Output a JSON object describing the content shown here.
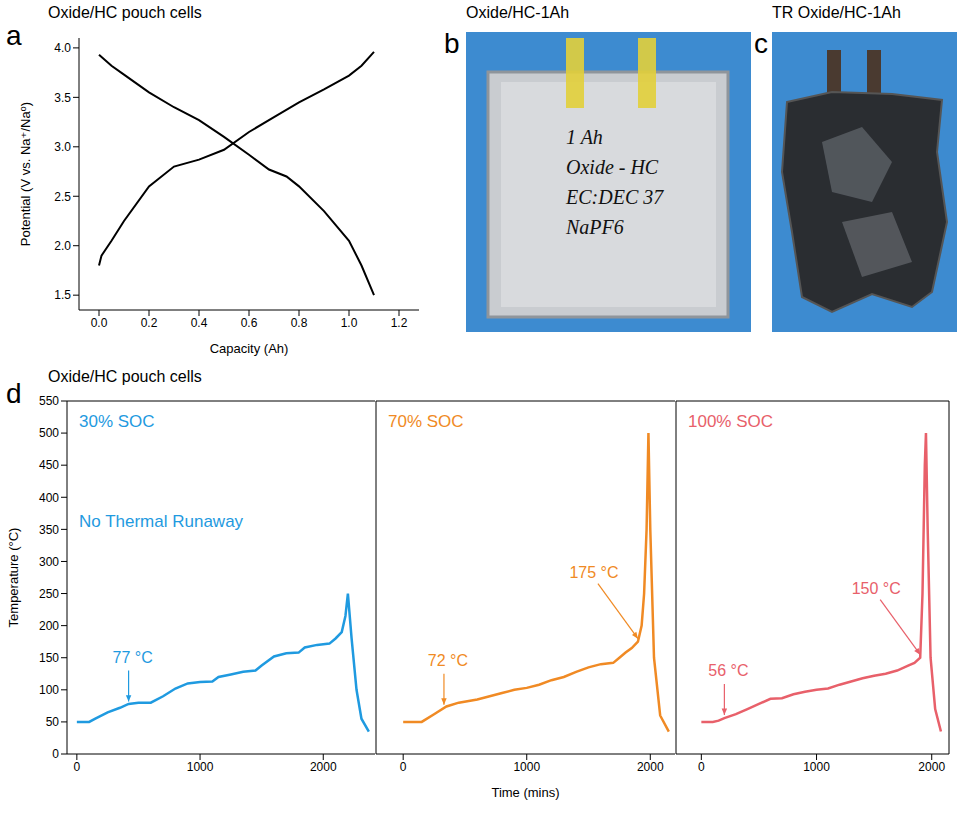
{
  "chart_data": [
    {
      "panel": "a",
      "type": "line",
      "title": "Oxide/HC pouch cells",
      "x_label": "Capacity (Ah)",
      "y_label": "Potential (V vs. Na⁺/Na⁰)",
      "xlim": [
        -0.08,
        1.28
      ],
      "ylim": [
        1.35,
        4.1
      ],
      "xticks": [
        {
          "value": 0,
          "label": "0.0"
        },
        0.2,
        0.4,
        0.6,
        0.8,
        {
          "value": 1,
          "label": "1.0"
        },
        1.2
      ],
      "yticks": [
        1.5,
        {
          "value": 2,
          "label": "2.0"
        },
        2.5,
        {
          "value": 3,
          "label": "3.0"
        },
        3.5,
        {
          "value": 4,
          "label": "4.0"
        }
      ],
      "series": [
        {
          "color": "#000000",
          "x": [
            0,
            0.01,
            0.05,
            0.1,
            0.2,
            0.3,
            0.4,
            0.5,
            0.6,
            0.7,
            0.8,
            0.9,
            1.0,
            1.05,
            1.1
          ],
          "values": [
            1.8,
            1.9,
            2.05,
            2.25,
            2.6,
            2.8,
            2.87,
            2.97,
            3.15,
            3.3,
            3.45,
            3.58,
            3.72,
            3.82,
            3.96
          ]
        },
        {
          "color": "#000000",
          "x": [
            0,
            0.05,
            0.1,
            0.2,
            0.3,
            0.4,
            0.5,
            0.6,
            0.68,
            0.75,
            0.8,
            0.9,
            1.0,
            1.05,
            1.1
          ],
          "values": [
            3.93,
            3.82,
            3.73,
            3.55,
            3.4,
            3.27,
            3.1,
            2.92,
            2.77,
            2.7,
            2.6,
            2.35,
            2.05,
            1.8,
            1.5
          ]
        }
      ]
    },
    {
      "panel": "b",
      "type": "photo",
      "title": "Oxide/HC-1Ah",
      "texts": [
        "1 Ah",
        "Oxide - HC",
        "EC:DEC 37",
        "NaPF6"
      ]
    },
    {
      "panel": "c",
      "type": "photo",
      "title": "TR Oxide/HC-1Ah"
    },
    {
      "panel": "d",
      "type": "line",
      "title": "Oxide/HC pouch cells",
      "x_label": "Time (mins)",
      "y_label": "Temperature (°C)",
      "ylim": [
        0,
        550
      ],
      "yticks": [
        0,
        50,
        100,
        150,
        200,
        250,
        300,
        350,
        400,
        450,
        500,
        550
      ],
      "xticks": [
        0,
        1000,
        2000
      ],
      "panels": [
        {
          "name": "30% SOC",
          "color": "#1f9ae0",
          "note": "No Thermal Runaway",
          "xlim": [
            -80,
            2420
          ],
          "x": [
            0,
            100,
            150,
            250,
            350,
            420,
            500,
            600,
            700,
            800,
            900,
            1000,
            1100,
            1150,
            1250,
            1350,
            1450,
            1500,
            1600,
            1700,
            1800,
            1850,
            1950,
            2050,
            2100,
            2150,
            2180,
            2200,
            2230,
            2270,
            2310,
            2370
          ],
          "values": [
            50,
            50,
            55,
            65,
            72,
            78,
            80,
            80,
            90,
            102,
            110,
            112,
            113,
            120,
            124,
            128,
            130,
            138,
            152,
            157,
            158,
            166,
            170,
            172,
            180,
            190,
            215,
            250,
            180,
            100,
            55,
            35
          ],
          "annotations": [
            {
              "text": "77 °C",
              "x": 420,
              "y": 77
            }
          ]
        },
        {
          "name": "70% SOC",
          "color": "#f08a24",
          "xlim": [
            -220,
            2200
          ],
          "x": [
            0,
            150,
            250,
            350,
            450,
            600,
            700,
            800,
            900,
            1000,
            1100,
            1200,
            1300,
            1400,
            1500,
            1600,
            1700,
            1750,
            1800,
            1850,
            1900,
            1930,
            1950,
            1970,
            1985,
            2000,
            2030,
            2080,
            2150
          ],
          "values": [
            50,
            50,
            62,
            74,
            80,
            85,
            90,
            95,
            100,
            103,
            108,
            115,
            120,
            128,
            135,
            140,
            142,
            150,
            158,
            165,
            175,
            200,
            250,
            350,
            500,
            350,
            150,
            60,
            35
          ],
          "annotations": [
            {
              "text": "72 °C",
              "x": 330,
              "y": 72
            },
            {
              "text": "175 °C",
              "x": 1900,
              "y": 175
            }
          ]
        },
        {
          "name": "100% SOC",
          "color": "#e8606a",
          "xlim": [
            -220,
            2150
          ],
          "x": [
            0,
            100,
            150,
            200,
            300,
            400,
            500,
            600,
            700,
            800,
            900,
            1000,
            1100,
            1200,
            1300,
            1400,
            1500,
            1600,
            1700,
            1800,
            1850,
            1900,
            1920,
            1940,
            1950,
            1965,
            1990,
            2030,
            2080
          ],
          "values": [
            50,
            50,
            52,
            56,
            62,
            70,
            78,
            86,
            87,
            93,
            97,
            100,
            102,
            108,
            113,
            118,
            122,
            125,
            130,
            138,
            142,
            150,
            250,
            450,
            500,
            350,
            150,
            70,
            35
          ],
          "annotations": [
            {
              "text": "56 °C",
              "x": 200,
              "y": 56
            },
            {
              "text": "150 °C",
              "x": 1900,
              "y": 150
            }
          ]
        }
      ]
    }
  ]
}
